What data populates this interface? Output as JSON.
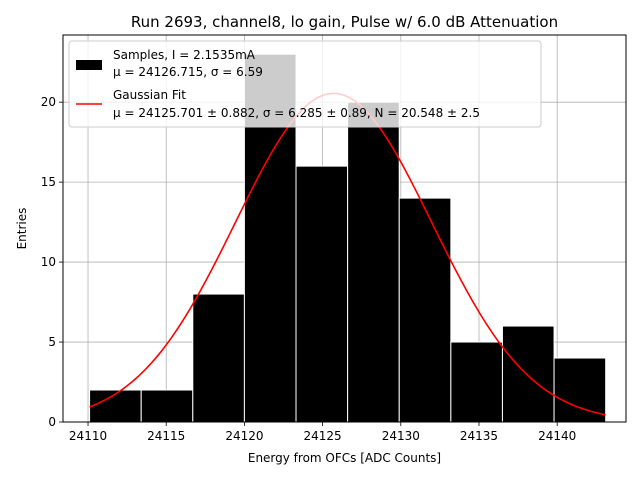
{
  "chart_data": {
    "type": "bar",
    "title": "Run 2693, channel8, lo gain, Pulse w/ 6.0 dB Attenuation",
    "xlabel": "Energy from OFCs [ADC Counts]",
    "ylabel": "Entries",
    "xlim": [
      24108.4,
      24144.4
    ],
    "ylim": [
      0,
      24.2
    ],
    "grid": true,
    "legend_position": "upper-left",
    "x_ticks": [
      24110,
      24115,
      24120,
      24125,
      24130,
      24135,
      24140
    ],
    "y_ticks": [
      0,
      5,
      10,
      15,
      20
    ],
    "series": [
      {
        "name": "Samples, I = 2.1535mA",
        "name_line2": "μ = 24126.715, σ = 6.59",
        "kind": "histogram",
        "color": "#000000",
        "bin_edges": [
          24110.1,
          24113.4,
          24116.7,
          24120.0,
          24123.3,
          24126.6,
          24129.9,
          24133.2,
          24136.5,
          24139.8,
          24143.1
        ],
        "values": [
          2,
          2,
          8,
          23,
          16,
          20,
          14,
          5,
          6,
          4
        ]
      },
      {
        "name": "Gaussian Fit",
        "name_line2": "μ = 24125.701 ± 0.882, σ = 6.285 ± 0.89, N = 20.548 ± 2.5",
        "kind": "line",
        "color": "#ff0000",
        "mu": 24125.701,
        "sigma": 6.285,
        "amplitude": 20.548,
        "x_range": [
          24110.1,
          24143.1
        ]
      }
    ]
  }
}
